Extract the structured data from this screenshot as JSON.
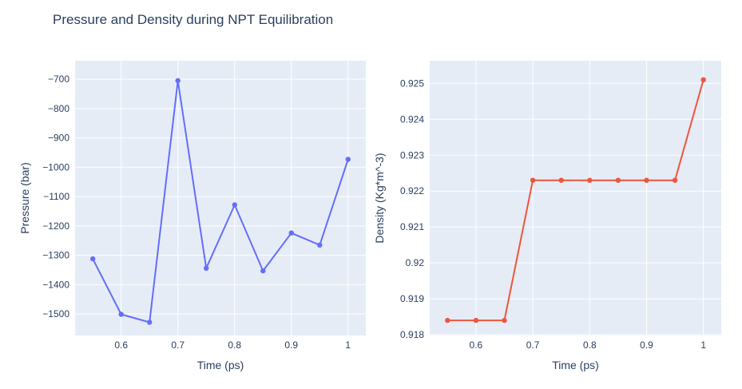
{
  "figure": {
    "title": "Pressure and Density during NPT Equilibration"
  },
  "theme": {
    "font_color": "#2a3f5f",
    "paper_bg": "#ffffff",
    "plot_bg": "#e5ecf6",
    "grid_color": "#ffffff",
    "pressure_color": "#636efa",
    "density_color": "#ef553b"
  },
  "chart_data": [
    {
      "type": "line",
      "name": "pressure",
      "xlabel": "Time (ps)",
      "ylabel": "Pressure (bar)",
      "line_color": "#636efa",
      "markers": true,
      "grid": true,
      "legend": "none",
      "x": [
        0.55,
        0.6,
        0.65,
        0.7,
        0.75,
        0.8,
        0.85,
        0.9,
        0.95,
        1.0
      ],
      "y": [
        -1312,
        -1501,
        -1528,
        -705,
        -1344,
        -1128,
        -1353,
        -1224,
        -1265,
        -973
      ],
      "xlim": [
        0.5187,
        1.0313
      ],
      "ylim": [
        -1573,
        -637
      ],
      "xticks": [
        0.6,
        0.7,
        0.8,
        0.9,
        1.0
      ],
      "xtick_labels": [
        "0.6",
        "0.7",
        "0.8",
        "0.9",
        "1"
      ],
      "yticks": [
        -700,
        -800,
        -900,
        -1000,
        -1100,
        -1200,
        -1300,
        -1400,
        -1500
      ],
      "ytick_labels": [
        "−700",
        "−800",
        "−900",
        "−1000",
        "−1100",
        "−1200",
        "−1300",
        "−1400",
        "−1500"
      ]
    },
    {
      "type": "line",
      "name": "density",
      "xlabel": "Time (ps)",
      "ylabel": "Density (Kg*m^-3)",
      "line_color": "#ef553b",
      "markers": true,
      "grid": true,
      "legend": "none",
      "x": [
        0.55,
        0.6,
        0.65,
        0.7,
        0.75,
        0.8,
        0.85,
        0.9,
        0.95,
        1.0
      ],
      "y": [
        0.9184,
        0.9184,
        0.9184,
        0.9223,
        0.9223,
        0.9223,
        0.9223,
        0.9223,
        0.9223,
        0.9251
      ],
      "xlim": [
        0.5187,
        1.0313
      ],
      "ylim": [
        0.91798,
        0.92563
      ],
      "xticks": [
        0.6,
        0.7,
        0.8,
        0.9,
        1.0
      ],
      "xtick_labels": [
        "0.6",
        "0.7",
        "0.8",
        "0.9",
        "1"
      ],
      "yticks": [
        0.925,
        0.924,
        0.923,
        0.922,
        0.921,
        0.92,
        0.919,
        0.918
      ],
      "ytick_labels": [
        "0.925",
        "0.924",
        "0.923",
        "0.922",
        "0.921",
        "0.92",
        "0.919",
        "0.918"
      ]
    }
  ]
}
